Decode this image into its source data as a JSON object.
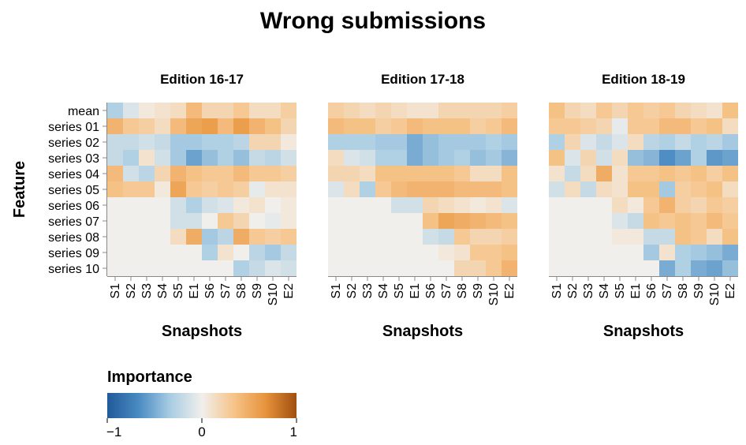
{
  "chart_data": {
    "type": "heatmap",
    "title": "Wrong submissions",
    "ylabel": "Feature",
    "features": [
      "mean",
      "series 01",
      "series 02",
      "series 03",
      "series 04",
      "series 05",
      "series 06",
      "series 07",
      "series 08",
      "series 09",
      "series 10"
    ],
    "snapshots": [
      "S1",
      "S2",
      "S3",
      "S4",
      "S5",
      "E1",
      "S6",
      "S7",
      "S8",
      "S9",
      "S10",
      "E2"
    ],
    "panels": [
      {
        "title": "Edition 16-17",
        "xlabel": "Snapshots",
        "values": [
          [
            -0.3,
            -0.1,
            0.05,
            0.1,
            0.15,
            0.4,
            0.2,
            0.2,
            0.3,
            0.15,
            0.15,
            0.25
          ],
          [
            0.45,
            0.3,
            0.25,
            0.15,
            0.4,
            0.55,
            0.6,
            0.4,
            0.6,
            0.45,
            0.35,
            0.2
          ],
          [
            -0.2,
            -0.2,
            -0.15,
            -0.2,
            -0.35,
            -0.35,
            -0.3,
            -0.3,
            -0.25,
            0.2,
            0.2,
            0.05
          ],
          [
            -0.2,
            -0.3,
            0.1,
            -0.15,
            -0.35,
            -0.55,
            -0.4,
            -0.3,
            -0.4,
            -0.2,
            -0.25,
            -0.15
          ],
          [
            0.4,
            -0.15,
            -0.25,
            0.2,
            0.45,
            0.35,
            0.3,
            0.3,
            0.4,
            0.3,
            0.3,
            0.25
          ],
          [
            0.35,
            0.3,
            0.3,
            0.05,
            0.55,
            0.3,
            0.25,
            0.3,
            0.25,
            -0.05,
            0.1,
            0.1
          ],
          [
            0,
            0,
            0,
            0,
            -0.15,
            -0.3,
            -0.15,
            -0.1,
            0.05,
            0.1,
            0,
            0.05
          ],
          [
            0,
            0,
            0,
            0,
            -0.15,
            -0.15,
            0,
            0.3,
            0.2,
            0,
            -0.05,
            0.05
          ],
          [
            0,
            0,
            0,
            0,
            0.15,
            0.5,
            -0.35,
            -0.25,
            0.5,
            0.3,
            0.25,
            0.3
          ],
          [
            0,
            0,
            0,
            0,
            0,
            0,
            -0.3,
            0.1,
            0,
            -0.25,
            -0.35,
            -0.2
          ],
          [
            0,
            0,
            0,
            0,
            0,
            0,
            0,
            0,
            -0.3,
            -0.2,
            -0.1,
            -0.15
          ]
        ]
      },
      {
        "title": "Edition 17-18",
        "xlabel": "Snapshots",
        "values": [
          [
            0.25,
            0.2,
            0.15,
            0.2,
            0.15,
            0.1,
            0.1,
            0.2,
            0.2,
            0.2,
            0.2,
            0.25
          ],
          [
            0.4,
            0.35,
            0.35,
            0.25,
            0.3,
            0.4,
            0.35,
            0.35,
            0.35,
            0.25,
            0.3,
            0.4
          ],
          [
            -0.3,
            -0.3,
            -0.3,
            -0.35,
            -0.35,
            -0.5,
            -0.4,
            -0.35,
            -0.35,
            -0.35,
            -0.3,
            -0.35
          ],
          [
            0.15,
            -0.1,
            -0.15,
            -0.3,
            -0.3,
            -0.5,
            -0.4,
            -0.35,
            -0.3,
            -0.4,
            -0.35,
            -0.45
          ],
          [
            0.2,
            0.2,
            0.15,
            0.35,
            0.35,
            0.35,
            0.35,
            0.35,
            0.3,
            0.15,
            0.15,
            0.35
          ],
          [
            -0.1,
            0.15,
            -0.3,
            0.3,
            0.4,
            0.45,
            0.45,
            0.45,
            0.4,
            0.4,
            0.4,
            0.35
          ],
          [
            0,
            0,
            0,
            0,
            -0.15,
            -0.15,
            0.2,
            0.15,
            0.1,
            0.05,
            0.1,
            -0.1
          ],
          [
            0,
            0,
            0,
            0,
            0,
            0,
            0.35,
            0.55,
            0.5,
            0.45,
            0.4,
            0.35
          ],
          [
            0,
            0,
            0,
            0,
            0,
            0,
            -0.15,
            -0.2,
            0.3,
            0.2,
            0.2,
            0.25
          ],
          [
            0,
            0,
            0,
            0,
            0,
            0,
            0,
            0.05,
            0.1,
            0.3,
            0.3,
            0.35
          ],
          [
            0,
            0,
            0,
            0,
            0,
            0,
            0,
            0,
            0.2,
            0.2,
            0.3,
            0.45
          ]
        ]
      },
      {
        "title": "Edition 18-19",
        "xlabel": "Snapshots",
        "values": [
          [
            0.35,
            0.2,
            0.15,
            0.3,
            0.2,
            0.3,
            0.25,
            0.3,
            0.2,
            0.15,
            0.1,
            0.35
          ],
          [
            0.3,
            0.3,
            0.25,
            0.2,
            -0.05,
            0.3,
            0.3,
            0.4,
            0.4,
            0.3,
            0.35,
            0.15
          ],
          [
            -0.3,
            0.2,
            -0.1,
            -0.2,
            -0.1,
            0.15,
            -0.25,
            -0.3,
            -0.2,
            -0.3,
            -0.25,
            -0.35
          ],
          [
            0.35,
            -0.1,
            0.2,
            -0.15,
            0.15,
            -0.4,
            -0.45,
            -0.65,
            -0.55,
            -0.3,
            -0.6,
            -0.55
          ],
          [
            0.1,
            -0.2,
            0.15,
            0.5,
            0.1,
            0.3,
            0.3,
            0.35,
            0.3,
            0.35,
            0.25,
            0.35
          ],
          [
            -0.15,
            0.15,
            -0.2,
            0.15,
            0.1,
            0.35,
            0.35,
            -0.35,
            0.25,
            0.3,
            0.35,
            0.15
          ],
          [
            0,
            0,
            0,
            0,
            0.15,
            0.05,
            0.3,
            0.45,
            0.25,
            0.2,
            0.3,
            0.25
          ],
          [
            0,
            0,
            0,
            0,
            -0.1,
            -0.2,
            0.35,
            0.3,
            0.35,
            0.3,
            0.4,
            0.3
          ],
          [
            0,
            0,
            0,
            0,
            0.05,
            0.05,
            -0.2,
            -0.2,
            0.35,
            0.3,
            0.15,
            0.35
          ],
          [
            0,
            0,
            0,
            0,
            0,
            0,
            -0.35,
            0.1,
            -0.3,
            -0.35,
            -0.4,
            -0.5
          ],
          [
            0,
            0,
            0,
            0,
            0,
            0,
            0,
            -0.5,
            -0.3,
            -0.5,
            -0.55,
            -0.4
          ]
        ]
      }
    ],
    "color_scale": {
      "title": "Importance",
      "domain": [
        -1,
        1
      ],
      "tick_labels": [
        "−1",
        "0",
        "1"
      ],
      "tick_values": [
        -1,
        0,
        1
      ],
      "colors": [
        "#1f5a9a",
        "#4a8bc2",
        "#a9cce3",
        "#f1efeb",
        "#f6c48a",
        "#e8943d",
        "#a04f0f"
      ]
    }
  }
}
